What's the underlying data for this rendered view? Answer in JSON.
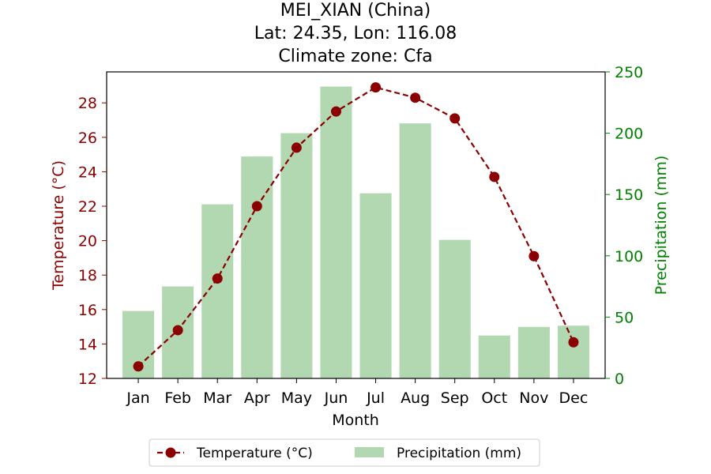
{
  "chart_data": {
    "type": "bar+line",
    "title_lines": [
      "MEI_XIAN (China)",
      "Lat: 24.35, Lon: 116.08",
      "Climate zone: Cfa"
    ],
    "xlabel": "Month",
    "categories": [
      "Jan",
      "Feb",
      "Mar",
      "Apr",
      "May",
      "Jun",
      "Jul",
      "Aug",
      "Sep",
      "Oct",
      "Nov",
      "Dec"
    ],
    "temperature": {
      "name": "Temperature (°C)",
      "axis_label": "Temperature (°C)",
      "color": "#8b0000",
      "style": "dashed line with circle markers",
      "values": [
        12.7,
        14.8,
        17.8,
        22.0,
        25.4,
        27.5,
        28.9,
        28.3,
        27.1,
        23.7,
        19.1,
        14.1
      ],
      "ylim": [
        12.0,
        29.8
      ],
      "ticks": [
        "12",
        "14",
        "16",
        "18",
        "20",
        "22",
        "24",
        "26",
        "28"
      ]
    },
    "precipitation": {
      "name": "Precipitation (mm)",
      "axis_label": "Precipitation (mm)",
      "color": "#b2d8b2",
      "axis_color": "#008000",
      "values": [
        55,
        75,
        142,
        181,
        200,
        238,
        151,
        208,
        113,
        35,
        42,
        43
      ],
      "ylim": [
        0,
        250
      ],
      "ticks": [
        "0",
        "50",
        "100",
        "150",
        "200",
        "250"
      ]
    },
    "legend_position": "bottom-center",
    "grid": false
  }
}
